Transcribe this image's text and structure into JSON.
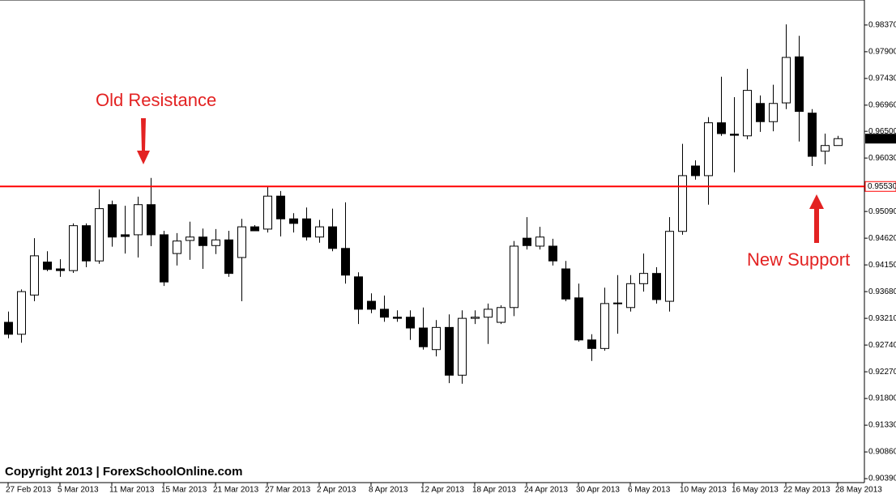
{
  "chart_data": {
    "type": "candlestick",
    "copyright": "Copyright 2013 | ForexSchoolOnline.com",
    "annotations": [
      "Old Resistance",
      "New Support"
    ],
    "categories": [
      "27 Feb 2013",
      null,
      null,
      null,
      "5 Mar 2013",
      null,
      null,
      null,
      "11 Mar 2013",
      null,
      null,
      null,
      "15 Mar 2013",
      null,
      null,
      null,
      "21 Mar 2013",
      null,
      null,
      null,
      "27 Mar 2013",
      null,
      null,
      null,
      "2 Apr 2013",
      null,
      null,
      null,
      "8 Apr 2013",
      null,
      null,
      null,
      "12 Apr 2013",
      null,
      null,
      null,
      "18 Apr 2013",
      null,
      null,
      null,
      "24 Apr 2013",
      null,
      null,
      null,
      "30 Apr 2013",
      null,
      null,
      null,
      "6 May 2013",
      null,
      null,
      null,
      "10 May 2013",
      null,
      null,
      null,
      "16 May 2013",
      null,
      null,
      null,
      "22 May 2013",
      null,
      null,
      null,
      "28 May 2013"
    ],
    "open": [
      0.9314,
      0.9293,
      0.9362,
      0.942,
      0.9408,
      0.9405,
      0.9484,
      0.9422,
      0.9521,
      0.9468,
      0.9468,
      0.9521,
      0.9468,
      0.9435,
      0.9458,
      0.9464,
      0.9449,
      0.9459,
      0.9428,
      0.9482,
      0.9478,
      0.9536,
      0.9496,
      0.9496,
      0.9464,
      0.9482,
      0.9444,
      0.9394,
      0.9351,
      0.9337,
      0.9323,
      0.9323,
      0.9304,
      0.9266,
      0.9305,
      0.9221,
      0.9321,
      0.9323,
      0.9314,
      0.934,
      0.9462,
      0.9448,
      0.9448,
      0.9408,
      0.9357,
      0.9283,
      0.9268,
      0.9347,
      0.934,
      0.9382,
      0.94,
      0.9351,
      0.9474,
      0.9589,
      0.9572,
      0.9665,
      0.9645,
      0.9642,
      0.9699,
      0.9667,
      0.97,
      0.9781,
      0.9682,
      0.9615,
      0.9625
    ],
    "high": [
      0.9333,
      0.9372,
      0.9462,
      0.9439,
      0.9425,
      0.9488,
      0.9488,
      0.9548,
      0.9528,
      0.9519,
      0.9535,
      0.9568,
      0.9475,
      0.9471,
      0.9491,
      0.9479,
      0.9478,
      0.9475,
      0.9496,
      0.9485,
      0.9553,
      0.9545,
      0.9506,
      0.9516,
      0.9494,
      0.9514,
      0.9525,
      0.9402,
      0.9365,
      0.9361,
      0.9335,
      0.9335,
      0.934,
      0.9318,
      0.9328,
      0.9335,
      0.9335,
      0.9347,
      0.9344,
      0.9457,
      0.9499,
      0.9482,
      0.9461,
      0.9422,
      0.9382,
      0.9293,
      0.9375,
      0.9397,
      0.9397,
      0.9435,
      0.9411,
      0.9499,
      0.9628,
      0.9599,
      0.9675,
      0.9746,
      0.971,
      0.976,
      0.9713,
      0.9732,
      0.9838,
      0.9818,
      0.9689,
      0.9646,
      0.9642
    ],
    "low": [
      0.9286,
      0.9278,
      0.9351,
      0.9404,
      0.9394,
      0.9401,
      0.9411,
      0.9417,
      0.9447,
      0.9435,
      0.9428,
      0.9448,
      0.9378,
      0.9414,
      0.9424,
      0.9408,
      0.9434,
      0.9394,
      0.9351,
      0.9475,
      0.9472,
      0.9465,
      0.9472,
      0.9458,
      0.9454,
      0.9439,
      0.9382,
      0.9311,
      0.933,
      0.9315,
      0.9315,
      0.9283,
      0.9266,
      0.9254,
      0.9207,
      0.9206,
      0.9311,
      0.9276,
      0.9311,
      0.9325,
      0.9442,
      0.9442,
      0.9414,
      0.9351,
      0.928,
      0.9246,
      0.9264,
      0.9294,
      0.9333,
      0.9368,
      0.9347,
      0.9333,
      0.9468,
      0.9565,
      0.9521,
      0.9642,
      0.9578,
      0.9636,
      0.9649,
      0.965,
      0.9689,
      0.9632,
      0.9589,
      0.9592,
      0.9625
    ],
    "close": [
      0.9293,
      0.9368,
      0.9431,
      0.9407,
      0.9405,
      0.9484,
      0.9422,
      0.9514,
      0.9464,
      0.9465,
      0.9521,
      0.9468,
      0.9385,
      0.9457,
      0.9464,
      0.9449,
      0.9459,
      0.94,
      0.9482,
      0.9475,
      0.9536,
      0.9496,
      0.9488,
      0.9464,
      0.9482,
      0.9444,
      0.9397,
      0.9337,
      0.9337,
      0.9323,
      0.9321,
      0.9304,
      0.9271,
      0.9305,
      0.9221,
      0.9321,
      0.9323,
      0.9337,
      0.934,
      0.9448,
      0.9449,
      0.9464,
      0.9422,
      0.9355,
      0.9283,
      0.9268,
      0.9347,
      0.9348,
      0.9382,
      0.94,
      0.9354,
      0.9474,
      0.9572,
      0.9572,
      0.9665,
      0.9646,
      0.9643,
      0.9722,
      0.9667,
      0.9699,
      0.978,
      0.9685,
      0.9606,
      0.9625,
      0.96371
    ],
    "up_color": "#ffffff",
    "down_color": "#000000",
    "edge_color": "#000000",
    "price_line": {
      "value": 0.9553,
      "label": "0.95530",
      "color": "#ff0000"
    },
    "last_price": {
      "value": 0.96371,
      "label": "0.96371"
    },
    "ylim": [
      0.9032,
      0.9881
    ],
    "yticks": [
      {
        "value": 0.9837,
        "label": "0.98370"
      },
      {
        "value": 0.979,
        "label": "0.97900"
      },
      {
        "value": 0.9743,
        "label": "0.97430"
      },
      {
        "value": 0.9696,
        "label": "0.96960"
      },
      {
        "value": 0.965,
        "label": "0.96500"
      },
      {
        "value": 0.9603,
        "label": "0.96030"
      },
      {
        "value": 0.9509,
        "label": "0.95090"
      },
      {
        "value": 0.9462,
        "label": "0.94620"
      },
      {
        "value": 0.9415,
        "label": "0.94150"
      },
      {
        "value": 0.9368,
        "label": "0.93680"
      },
      {
        "value": 0.9321,
        "label": "0.93210"
      },
      {
        "value": 0.9274,
        "label": "0.92740"
      },
      {
        "value": 0.9227,
        "label": "0.92270"
      },
      {
        "value": 0.918,
        "label": "0.91800"
      },
      {
        "value": 0.9133,
        "label": "0.91330"
      },
      {
        "value": 0.9086,
        "label": "0.90860"
      },
      {
        "value": 0.9039,
        "label": "0.90390"
      }
    ]
  }
}
